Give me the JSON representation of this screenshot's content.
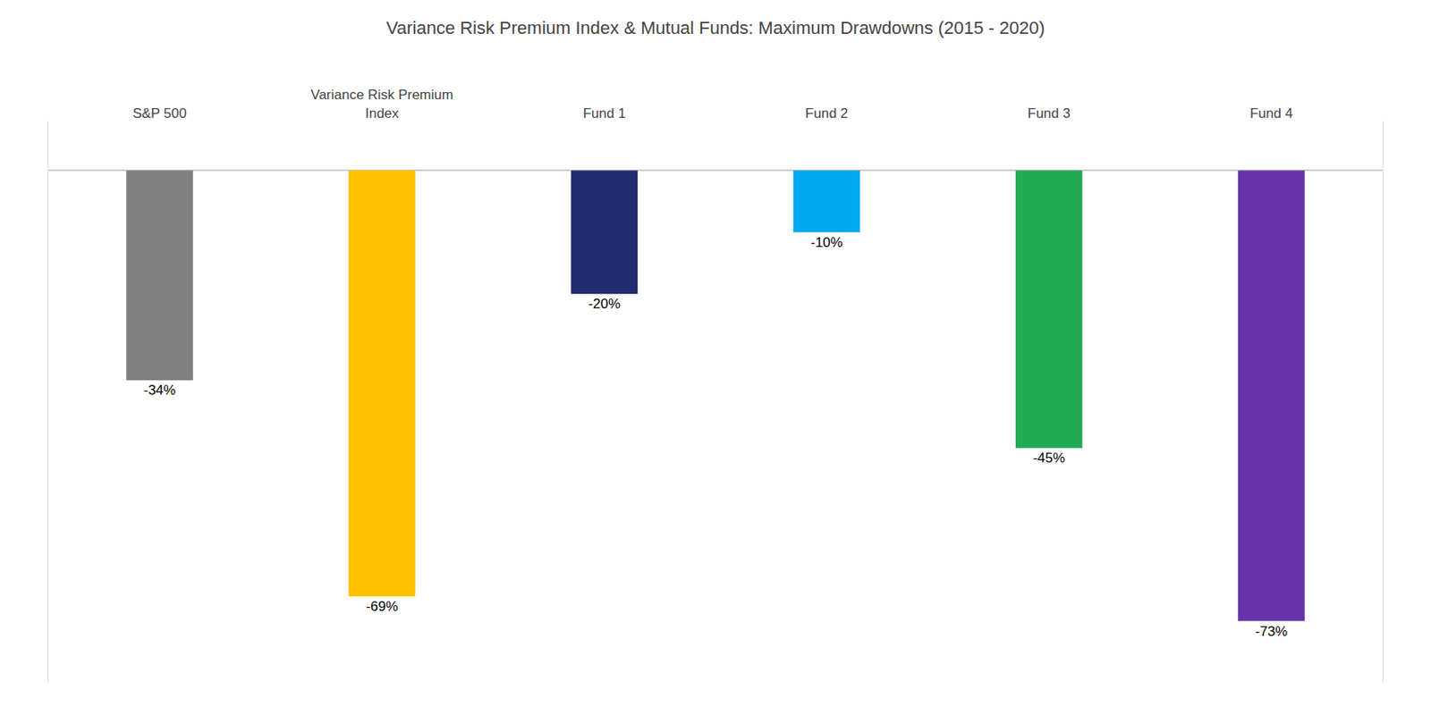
{
  "chart_data": {
    "type": "bar",
    "title": "Variance Risk Premium Index & Mutual Funds: Maximum Drawdowns (2015 - 2020)",
    "categories": [
      "S&P 500",
      "Variance Risk Premium\nIndex",
      "Fund 1",
      "Fund 2",
      "Fund 3",
      "Fund 4"
    ],
    "values": [
      -34,
      -69,
      -20,
      -10,
      -45,
      -73
    ],
    "value_labels": [
      "-34%",
      "-69%",
      "-20%",
      "-10%",
      "-45%",
      "-73%"
    ],
    "colors": [
      "#808080",
      "#FFC000",
      "#1F2D6E",
      "#00AAEE",
      "#22AA55",
      "#6633AA"
    ],
    "data_labels": true,
    "ylim": [
      -83,
      8
    ],
    "tick_labels": "x",
    "grid": false
  }
}
